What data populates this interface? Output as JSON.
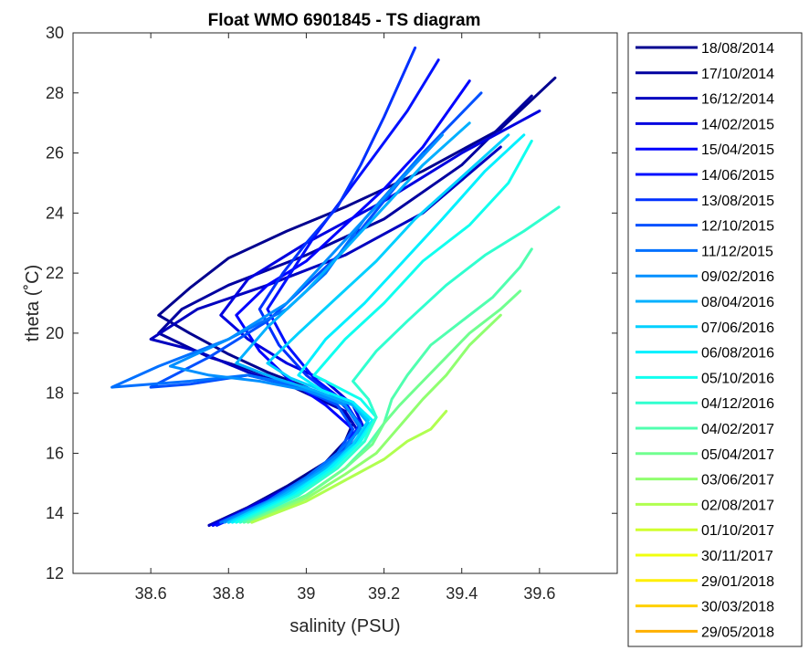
{
  "chart_data": {
    "type": "line",
    "title": "Float WMO 6901845 - TS diagram",
    "xlabel": "salinity (PSU)",
    "ylabel": "theta (˚C)",
    "xlim": [
      38.4,
      39.8
    ],
    "ylim": [
      12,
      30
    ],
    "xticks": [
      "38.6",
      "38.8",
      "39",
      "39.2",
      "39.4",
      "39.6"
    ],
    "yticks": [
      "12",
      "14",
      "16",
      "18",
      "20",
      "22",
      "24",
      "26",
      "28",
      "30"
    ],
    "grid": false,
    "legend_position": "outside-right",
    "series": [
      {
        "name": "18/08/2014",
        "color": "#00008f",
        "x": [
          38.75,
          38.85,
          38.95,
          39.05,
          39.1,
          39.12,
          39.08,
          39.0,
          38.9,
          38.8,
          38.7,
          38.62,
          38.7,
          38.8,
          38.95,
          39.1,
          39.3,
          39.5,
          39.64
        ],
        "y": [
          13.6,
          14.2,
          14.9,
          15.7,
          16.4,
          17.0,
          17.6,
          18.2,
          18.7,
          19.3,
          20.0,
          20.6,
          21.5,
          22.5,
          23.4,
          24.2,
          25.4,
          26.8,
          28.5
        ]
      },
      {
        "name": "17/10/2014",
        "color": "#00009f",
        "x": [
          38.75,
          38.9,
          39.0,
          39.08,
          39.12,
          39.1,
          39.0,
          38.9,
          38.75,
          38.62,
          38.68,
          38.8,
          39.0,
          39.2,
          39.4,
          39.58
        ],
        "y": [
          13.6,
          14.4,
          15.0,
          15.8,
          16.6,
          17.4,
          18.0,
          18.6,
          19.2,
          20.0,
          20.8,
          21.6,
          22.6,
          23.8,
          25.6,
          27.9
        ]
      },
      {
        "name": "16/12/2014",
        "color": "#0000bf",
        "x": [
          38.75,
          38.88,
          39.0,
          39.1,
          39.14,
          39.1,
          39.0,
          38.85,
          38.72,
          38.6,
          38.72,
          38.9,
          39.1,
          39.3,
          39.5
        ],
        "y": [
          13.6,
          14.3,
          15.1,
          15.9,
          16.6,
          17.4,
          18.1,
          18.7,
          19.4,
          19.8,
          20.8,
          21.6,
          22.6,
          24.0,
          26.2
        ]
      },
      {
        "name": "14/02/2015",
        "color": "#0000df",
        "x": [
          38.76,
          38.9,
          39.02,
          39.1,
          39.15,
          39.12,
          39.05,
          38.95,
          38.85,
          38.78,
          38.85,
          39.0,
          39.2,
          39.4,
          39.6
        ],
        "y": [
          13.6,
          14.5,
          15.3,
          16.0,
          16.8,
          17.6,
          18.4,
          19.0,
          19.8,
          20.6,
          21.8,
          23.0,
          24.4,
          26.0,
          27.4
        ]
      },
      {
        "name": "15/04/2015",
        "color": "#0000ff",
        "x": [
          38.76,
          38.9,
          39.0,
          39.1,
          39.12,
          39.05,
          38.96,
          38.88,
          38.82,
          38.9,
          39.0,
          39.1,
          39.2,
          39.3,
          39.42
        ],
        "y": [
          13.6,
          14.4,
          15.2,
          16.0,
          16.8,
          17.6,
          18.4,
          19.4,
          20.6,
          21.6,
          22.4,
          23.6,
          24.8,
          26.2,
          28.4
        ]
      },
      {
        "name": "14/06/2015",
        "color": "#0010ff",
        "x": [
          38.77,
          38.92,
          39.02,
          39.1,
          39.14,
          39.1,
          39.02,
          38.95,
          38.9,
          38.96,
          39.02,
          39.1,
          39.18,
          39.26,
          39.34
        ],
        "y": [
          13.6,
          14.5,
          15.3,
          16.1,
          16.9,
          17.7,
          18.5,
          19.6,
          20.8,
          22.0,
          23.2,
          24.6,
          26.0,
          27.4,
          29.1
        ]
      },
      {
        "name": "13/08/2015",
        "color": "#0030ff",
        "x": [
          38.78,
          38.92,
          39.02,
          39.1,
          39.14,
          39.08,
          39.0,
          38.93,
          38.88,
          38.94,
          39.0,
          39.08,
          39.14,
          39.2,
          39.28
        ],
        "y": [
          13.7,
          14.5,
          15.3,
          16.2,
          17.0,
          17.8,
          18.6,
          19.6,
          20.8,
          22.0,
          23.0,
          24.2,
          25.6,
          27.2,
          29.5
        ]
      },
      {
        "name": "12/10/2015",
        "color": "#0050ff",
        "x": [
          38.78,
          38.9,
          39.0,
          39.08,
          39.12,
          39.08,
          38.98,
          38.85,
          38.7,
          38.6,
          38.75,
          38.9,
          39.0,
          39.1,
          39.2,
          39.3,
          39.45
        ],
        "y": [
          13.7,
          14.4,
          15.2,
          16.0,
          16.8,
          17.6,
          18.2,
          18.6,
          18.3,
          18.2,
          19.2,
          20.4,
          21.6,
          22.8,
          24.4,
          26.0,
          28.0
        ]
      },
      {
        "name": "11/12/2015",
        "color": "#0070ff",
        "x": [
          38.78,
          38.9,
          39.0,
          39.08,
          39.14,
          39.1,
          39.0,
          38.85,
          38.7,
          38.5,
          38.62,
          38.8,
          38.95,
          39.05,
          39.15,
          39.3
        ],
        "y": [
          13.7,
          14.4,
          15.2,
          16.0,
          16.8,
          17.6,
          18.2,
          18.6,
          18.4,
          18.2,
          18.9,
          19.8,
          20.8,
          22.0,
          23.8,
          26.0
        ]
      },
      {
        "name": "09/02/2016",
        "color": "#0090ff",
        "x": [
          38.79,
          38.92,
          39.02,
          39.1,
          39.14,
          39.1,
          39.0,
          38.88,
          38.75,
          38.65,
          38.8,
          38.95,
          39.05,
          39.15,
          39.25,
          39.35
        ],
        "y": [
          13.7,
          14.5,
          15.3,
          16.1,
          16.9,
          17.6,
          18.1,
          18.4,
          18.6,
          18.9,
          19.8,
          21.0,
          22.4,
          23.8,
          25.2,
          26.6
        ]
      },
      {
        "name": "08/04/2016",
        "color": "#00b0ff",
        "x": [
          38.8,
          38.94,
          39.04,
          39.12,
          39.16,
          39.12,
          39.02,
          38.92,
          38.82,
          38.9,
          39.0,
          39.1,
          39.2,
          39.3,
          39.42
        ],
        "y": [
          13.7,
          14.6,
          15.4,
          16.2,
          17.0,
          17.6,
          18.1,
          18.5,
          19.0,
          20.2,
          21.4,
          22.8,
          24.2,
          25.6,
          27.0
        ]
      },
      {
        "name": "07/06/2016",
        "color": "#00d0ff",
        "x": [
          38.8,
          38.95,
          39.05,
          39.12,
          39.16,
          39.12,
          39.04,
          38.96,
          38.9,
          38.98,
          39.08,
          39.18,
          39.28,
          39.4,
          39.52
        ],
        "y": [
          13.7,
          14.6,
          15.4,
          16.3,
          17.1,
          17.7,
          18.1,
          18.5,
          19.0,
          20.0,
          21.2,
          22.4,
          23.8,
          25.2,
          26.6
        ]
      },
      {
        "name": "06/08/2016",
        "color": "#00f0ff",
        "x": [
          38.81,
          38.96,
          39.06,
          39.13,
          39.17,
          39.12,
          39.04,
          38.98,
          39.05,
          39.15,
          39.25,
          39.35,
          39.46,
          39.56
        ],
        "y": [
          13.7,
          14.6,
          15.5,
          16.3,
          17.1,
          17.7,
          18.1,
          18.6,
          19.8,
          21.0,
          22.4,
          23.8,
          25.4,
          26.6
        ]
      },
      {
        "name": "05/10/2016",
        "color": "#10ffef",
        "x": [
          38.82,
          38.97,
          39.07,
          39.14,
          39.18,
          39.14,
          39.08,
          39.02,
          39.1,
          39.2,
          39.3,
          39.42,
          39.52,
          39.58
        ],
        "y": [
          13.7,
          14.6,
          15.5,
          16.4,
          17.2,
          17.8,
          18.2,
          18.6,
          19.8,
          21.0,
          22.4,
          23.6,
          25.0,
          26.4
        ]
      },
      {
        "name": "04/12/2016",
        "color": "#30ffcf",
        "x": [
          38.83,
          38.98,
          39.08,
          39.15,
          39.18,
          39.16,
          39.12,
          39.18,
          39.26,
          39.36,
          39.46,
          39.56,
          39.65
        ],
        "y": [
          13.7,
          14.6,
          15.5,
          16.4,
          17.2,
          17.8,
          18.4,
          19.4,
          20.4,
          21.6,
          22.6,
          23.4,
          24.2
        ]
      },
      {
        "name": "04/02/2017",
        "color": "#50ffaf",
        "x": [
          38.84,
          39.0,
          39.1,
          39.16,
          39.2,
          39.22,
          39.26,
          39.32,
          39.4,
          39.48,
          39.55,
          39.58
        ],
        "y": [
          13.7,
          14.6,
          15.5,
          16.3,
          17.0,
          17.8,
          18.6,
          19.6,
          20.4,
          21.2,
          22.2,
          22.8
        ]
      },
      {
        "name": "05/04/2017",
        "color": "#70ff8f",
        "x": [
          38.85,
          39.0,
          39.1,
          39.17,
          39.2,
          39.24,
          39.3,
          39.36,
          39.42,
          39.5,
          39.55
        ],
        "y": [
          13.7,
          14.6,
          15.5,
          16.3,
          17.0,
          17.6,
          18.4,
          19.2,
          20.0,
          20.8,
          21.4
        ]
      },
      {
        "name": "03/06/2017",
        "color": "#90ff6f",
        "x": [
          38.86,
          39.0,
          39.1,
          39.18,
          39.22,
          39.26,
          39.3,
          39.36,
          39.42,
          39.5
        ],
        "y": [
          13.7,
          14.5,
          15.3,
          16.0,
          16.6,
          17.2,
          17.8,
          18.6,
          19.6,
          20.6
        ]
      },
      {
        "name": "02/08/2017",
        "color": "#b0ff4f",
        "x": [
          38.86,
          39.0,
          39.1,
          39.2,
          39.26,
          39.32,
          39.36
        ],
        "y": [
          13.7,
          14.4,
          15.1,
          15.8,
          16.4,
          16.8,
          17.4
        ]
      },
      {
        "name": "01/10/2017",
        "color": "#d0ff2f",
        "x": [],
        "y": []
      },
      {
        "name": "30/11/2017",
        "color": "#f0ff0f",
        "x": [],
        "y": []
      },
      {
        "name": "29/01/2018",
        "color": "#ffef00",
        "x": [],
        "y": []
      },
      {
        "name": "30/03/2018",
        "color": "#ffd000",
        "x": [],
        "y": []
      },
      {
        "name": "29/05/2018",
        "color": "#ffb000",
        "x": [],
        "y": []
      }
    ]
  }
}
